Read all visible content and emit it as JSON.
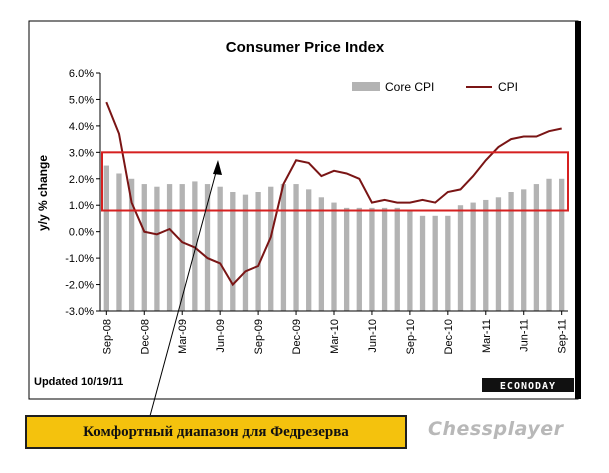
{
  "chart_data": {
    "type": "bar+line",
    "title": "Consumer Price Index",
    "ylabel": "y/y % change",
    "xlabel": "",
    "ylim": [
      -3.0,
      6.0
    ],
    "yticks": [
      "6.0%",
      "5.0%",
      "4.0%",
      "3.0%",
      "2.0%",
      "1.0%",
      "0.0%",
      "-1.0%",
      "-2.0%",
      "-3.0%"
    ],
    "xticks": [
      "Sep-08",
      "Dec-08",
      "Mar-09",
      "Jun-09",
      "Sep-09",
      "Dec-09",
      "Mar-10",
      "Jun-10",
      "Sep-10",
      "Dec-10",
      "Mar-11",
      "Jun-11",
      "Sep-11"
    ],
    "months": [
      "Sep-08",
      "Oct-08",
      "Nov-08",
      "Dec-08",
      "Jan-09",
      "Feb-09",
      "Mar-09",
      "Apr-09",
      "May-09",
      "Jun-09",
      "Jul-09",
      "Aug-09",
      "Sep-09",
      "Oct-09",
      "Nov-09",
      "Dec-09",
      "Jan-10",
      "Feb-10",
      "Mar-10",
      "Apr-10",
      "May-10",
      "Jun-10",
      "Jul-10",
      "Aug-10",
      "Sep-10",
      "Oct-10",
      "Nov-10",
      "Dec-10",
      "Jan-11",
      "Feb-11",
      "Mar-11",
      "Apr-11",
      "May-11",
      "Jun-11",
      "Jul-11",
      "Aug-11",
      "Sep-11"
    ],
    "series": [
      {
        "name": "Core CPI",
        "type": "bar",
        "color": "#b3b3b3",
        "values": [
          2.5,
          2.2,
          2.0,
          1.8,
          1.7,
          1.8,
          1.8,
          1.9,
          1.8,
          1.7,
          1.5,
          1.4,
          1.5,
          1.7,
          1.8,
          1.8,
          1.6,
          1.3,
          1.1,
          0.9,
          0.9,
          0.9,
          0.9,
          0.9,
          0.8,
          0.6,
          0.6,
          0.6,
          1.0,
          1.1,
          1.2,
          1.3,
          1.5,
          1.6,
          1.8,
          2.0,
          2.0
        ]
      },
      {
        "name": "CPI",
        "type": "line",
        "color": "#7a1515",
        "values": [
          4.9,
          3.7,
          1.1,
          0.0,
          -0.1,
          0.1,
          -0.4,
          -0.6,
          -1.0,
          -1.2,
          -2.0,
          -1.5,
          -1.3,
          -0.2,
          1.8,
          2.7,
          2.6,
          2.1,
          2.3,
          2.2,
          2.0,
          1.1,
          1.2,
          1.1,
          1.1,
          1.2,
          1.1,
          1.5,
          1.6,
          2.1,
          2.7,
          3.2,
          3.5,
          3.6,
          3.6,
          3.8,
          3.9
        ]
      }
    ],
    "legend": "top-right",
    "grid": false,
    "comfort_band": {
      "low": 0.8,
      "high": 3.0,
      "color": "#d62020"
    },
    "footnote": "Updated 10/19/11",
    "source_badge": "ECONODAY"
  },
  "callout_text": "Комфортный диапазон для Федрезерва",
  "watermark_text": "Chessplayer",
  "colors": {
    "bar": "#b3b3b3",
    "line": "#7a1515",
    "band": "#d62020",
    "callout_bg": "#f4c20d"
  }
}
